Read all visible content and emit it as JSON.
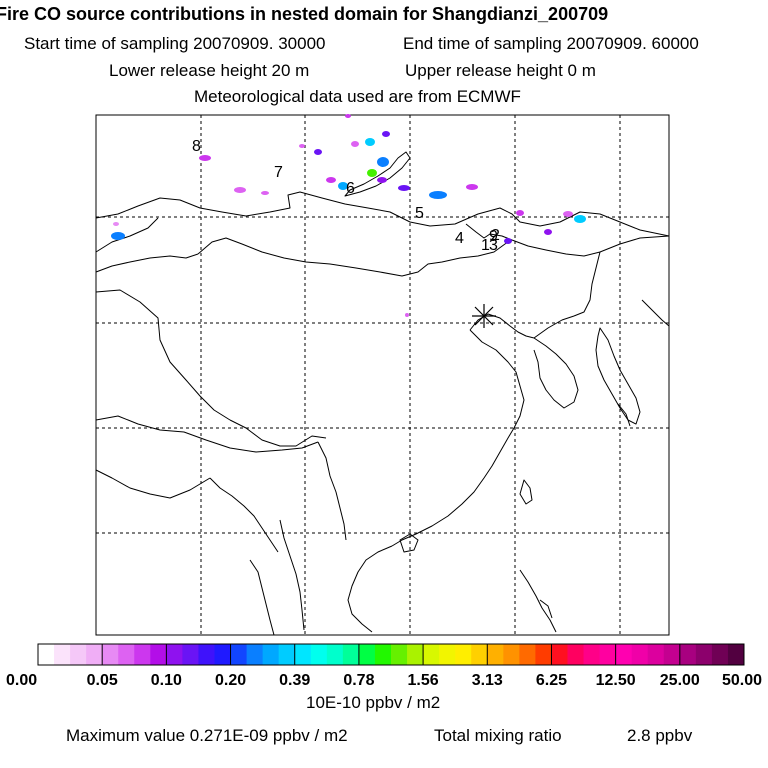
{
  "header": {
    "title": "Fire CO source contributions in nested domain for Shangdianzi_200709",
    "start_label": "Start time of sampling 20070909. 30000",
    "end_label": "End time of sampling 20070909. 60000",
    "lower_label": "Lower release height   20 m",
    "upper_label": "Upper release height    0 m",
    "met_label": "Meteorological data used are from ECMWF"
  },
  "chart_data": {
    "type": "heatmap",
    "title": "Fire CO source contributions in nested domain for Shangdianzi_200709",
    "colorbar": {
      "unit_label": "10E-10 ppbv / m2",
      "tick_labels": [
        "0.00",
        "0.05",
        "0.10",
        "0.20",
        "0.39",
        "0.78",
        "1.56",
        "3.13",
        "6.25",
        "12.50",
        "25.00",
        "50.00"
      ],
      "tick_values": [
        0.0,
        0.05,
        0.1,
        0.2,
        0.39,
        0.78,
        1.56,
        3.13,
        6.25,
        12.5,
        25.0,
        50.0
      ],
      "colors": [
        "#ffffff",
        "#fbe3fb",
        "#f5c8f8",
        "#f0aef6",
        "#e78af4",
        "#dd62f2",
        "#cc37ee",
        "#b30ee8",
        "#8f12ef",
        "#6a14f5",
        "#3f12fb",
        "#1f1aff",
        "#1245ff",
        "#0a7fff",
        "#00a8ff",
        "#00ccff",
        "#00e6ff",
        "#00ffee",
        "#00ffcc",
        "#00ff99",
        "#00ff44",
        "#22f800",
        "#66f000",
        "#aaf200",
        "#d8f800",
        "#f2f500",
        "#ffee00",
        "#ffd000",
        "#ffb000",
        "#ff9200",
        "#ff6a00",
        "#ff3c00",
        "#ff1020",
        "#ff0060",
        "#ff0088",
        "#ff00a0",
        "#ff00b0",
        "#f000a8",
        "#dc009e",
        "#c40090",
        "#a80080",
        "#8c006c",
        "#700055",
        "#520040"
      ]
    },
    "receptor_marker": "Shangdianzi",
    "source_labels": [
      "8",
      "7",
      "6",
      "5",
      "4",
      "9",
      "2",
      "1",
      "3"
    ],
    "footer": {
      "max_label": "Maximum value  0.271E-09 ppbv / m2",
      "total_label": "Total mixing ratio",
      "total_value": "2.8 ppbv"
    }
  }
}
